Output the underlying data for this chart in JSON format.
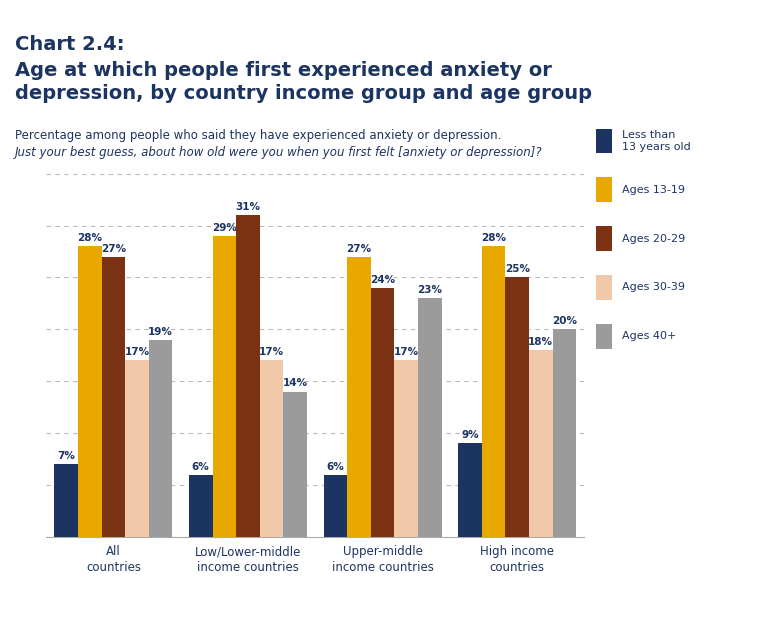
{
  "title_line1": "Chart 2.4:",
  "title_line2": "Age at which people first experienced anxiety or\ndepression, by country income group and age group",
  "subtitle1": "Percentage among people who said they have experienced anxiety or depression.",
  "subtitle2": "Just your best guess, about how old were you when you first felt [anxiety or depression]?",
  "categories": [
    "All\ncountries",
    "Low/Lower-middle\nincome countries",
    "Upper-middle\nincome countries",
    "High income\ncountries"
  ],
  "series": [
    {
      "label": "Less than\n13 years old",
      "color": "#1c3461",
      "values": [
        7,
        6,
        6,
        9
      ]
    },
    {
      "label": "Ages 13-19",
      "color": "#e8a800",
      "values": [
        28,
        29,
        27,
        28
      ]
    },
    {
      "label": "Ages 20-29",
      "color": "#7b3213",
      "values": [
        27,
        31,
        24,
        25
      ]
    },
    {
      "label": "Ages 30-39",
      "color": "#f2c9a8",
      "values": [
        17,
        17,
        17,
        18
      ]
    },
    {
      "label": "Ages 40+",
      "color": "#9b9b9b",
      "values": [
        19,
        14,
        23,
        20
      ]
    }
  ],
  "top_bar_color": "#b5451b",
  "bottom_bar_color": "#c8a44a",
  "background_color": "#ffffff",
  "ylim": [
    0,
    35
  ],
  "grid_color": "#bbbbbb",
  "title_color": "#1c3461",
  "wellcome_bg": "#1c3461",
  "wellcome_text": "#ffffff"
}
